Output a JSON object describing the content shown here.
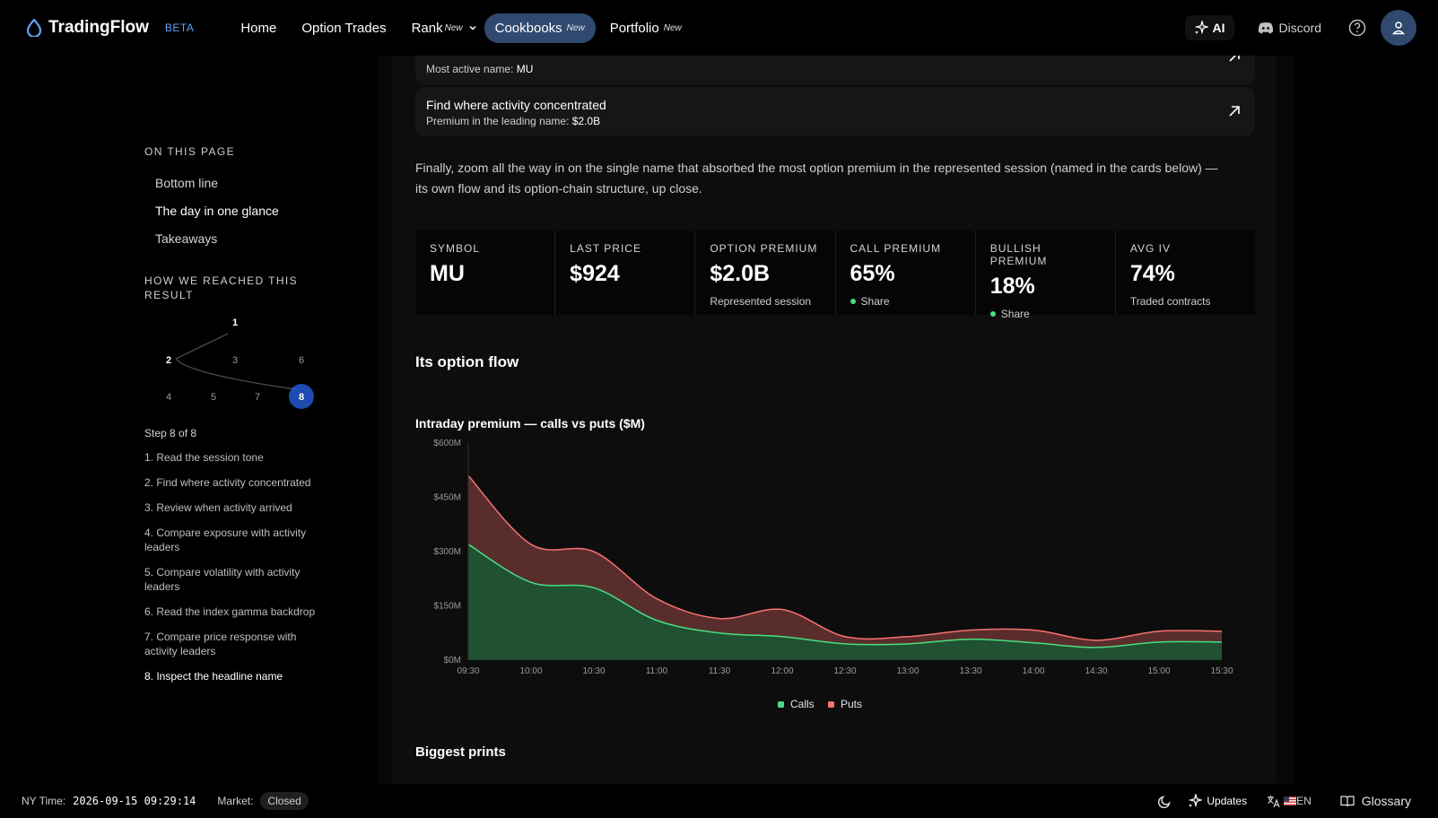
{
  "header": {
    "logo_text": "TradingFlow",
    "beta_label": "BETA",
    "nav": [
      {
        "label": "Home",
        "tag": ""
      },
      {
        "label": "Option Trades",
        "tag": ""
      },
      {
        "label": "Rank",
        "tag": "New"
      },
      {
        "label": "Cookbooks",
        "tag": "New"
      },
      {
        "label": "Portfolio",
        "tag": "New"
      }
    ],
    "ai_label": "AI",
    "discord_label": "Discord"
  },
  "sidebar": {
    "on_this_page_heading": "On this page",
    "toc": [
      "Bottom line",
      "The day in one glance",
      "Takeaways"
    ],
    "how_heading": "How we reached this result",
    "graph_nodes": [
      "1",
      "2",
      "3",
      "6",
      "4",
      "5",
      "7",
      "8"
    ],
    "step_of": "Step 8 of 8",
    "steps": [
      "1.  Read the session tone",
      "2.  Find where activity concentrated",
      "3.  Review when activity arrived",
      "4.  Compare exposure with activity leaders",
      "5.  Compare volatility with activity leaders",
      "6.  Read the index gamma backdrop",
      "7.  Compare price response with activity leaders",
      "8.  Inspect the headline name"
    ]
  },
  "main": {
    "cards": [
      {
        "title": "",
        "sub_prefix": "Most active name: ",
        "sub_value": "MU"
      },
      {
        "title": "Find where activity concentrated",
        "sub_prefix": "Premium in the leading name: ",
        "sub_value": "$2.0B"
      }
    ],
    "paragraph": "Finally, zoom all the way in on the single name that absorbed the most option premium in the represented session (named in the cards below) — its own flow and its option-chain structure, up close.",
    "stats": [
      {
        "label": "Symbol",
        "value": "MU",
        "note": ""
      },
      {
        "label": "Last price",
        "value": "$924",
        "note": ""
      },
      {
        "label": "Option premium",
        "value": "$2.0B",
        "note": "Represented session"
      },
      {
        "label": "Call premium",
        "value": "65%",
        "note": "Share"
      },
      {
        "label": "Bullish premium",
        "value": "18%",
        "note": "Share"
      },
      {
        "label": "Avg IV",
        "value": "74%",
        "note": "Traded contracts"
      }
    ],
    "flow_title": "Its option flow",
    "biggest_prints_title": "Biggest prints"
  },
  "chart_data": {
    "type": "area",
    "title": "Intraday premium — calls vs puts ($M)",
    "x": [
      "09:30",
      "10:00",
      "10:30",
      "11:00",
      "11:30",
      "12:00",
      "12:30",
      "13:00",
      "13:30",
      "14:00",
      "14:30",
      "15:00",
      "15:30"
    ],
    "y_ticks": [
      "$0M",
      "$150M",
      "$300M",
      "$450M",
      "$600M"
    ],
    "ylim": [
      0,
      600
    ],
    "stacked": true,
    "series": [
      {
        "name": "Calls",
        "color": "#4ade80",
        "values": [
          320,
          215,
          200,
          110,
          75,
          65,
          45,
          45,
          58,
          48,
          35,
          50,
          50
        ]
      },
      {
        "name": "Puts",
        "color": "#f87171",
        "values": [
          190,
          105,
          100,
          60,
          40,
          75,
          20,
          20,
          25,
          35,
          20,
          30,
          30
        ]
      }
    ],
    "legend_position": "bottom-center",
    "grid": false
  },
  "footer": {
    "ny_time_label": "NY Time:",
    "ny_time": "2026-09-15 09:29:14",
    "market_label": "Market:",
    "market_status": "Closed",
    "updates_label": "Updates",
    "lang_label": "EN",
    "glossary_label": "Glossary"
  }
}
